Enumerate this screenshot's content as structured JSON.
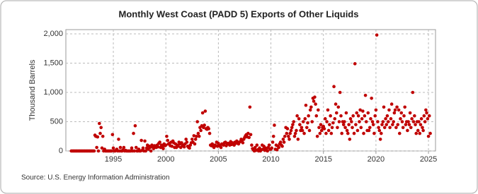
{
  "chart_data": {
    "type": "scatter",
    "title": "Monthly West Coast (PADD 5) Exports of Other Liquids",
    "y_label": "Thousand Barrels",
    "source": "Source: U.S. Energy Information Administration",
    "color": "#c00000",
    "grid": true,
    "xlim": [
      1990.48,
      2025.67
    ],
    "ylim": [
      0,
      2000
    ],
    "xticks": [
      1995,
      2000,
      2005,
      2010,
      2015,
      2020,
      2025
    ],
    "yticks": [
      0,
      500,
      {
        "value": 1000,
        "label": "1,000"
      },
      {
        "value": 1500,
        "label": "1,500"
      },
      {
        "value": 2000,
        "label": "2,000"
      }
    ],
    "x": [
      1991.0,
      1991.08,
      1991.17,
      1991.25,
      1991.33,
      1991.42,
      1991.5,
      1991.58,
      1991.67,
      1991.75,
      1991.83,
      1991.92,
      1992.0,
      1992.08,
      1992.17,
      1992.25,
      1992.33,
      1992.42,
      1992.5,
      1992.58,
      1992.67,
      1992.75,
      1992.83,
      1992.92,
      1993.0,
      1993.08,
      1993.17,
      1993.25,
      1993.33,
      1993.42,
      1993.5,
      1993.58,
      1993.67,
      1993.75,
      1993.83,
      1993.92,
      1994.0,
      1994.08,
      1994.17,
      1994.25,
      1994.33,
      1994.42,
      1994.5,
      1994.58,
      1994.67,
      1994.75,
      1994.83,
      1994.92,
      1995.0,
      1995.08,
      1995.17,
      1995.25,
      1995.33,
      1995.42,
      1995.5,
      1995.58,
      1995.67,
      1995.75,
      1995.83,
      1995.92,
      1996.0,
      1996.08,
      1996.17,
      1996.25,
      1996.33,
      1996.42,
      1996.5,
      1996.58,
      1996.67,
      1996.75,
      1996.83,
      1996.92,
      1997.0,
      1997.08,
      1997.17,
      1997.25,
      1997.33,
      1997.42,
      1997.5,
      1997.58,
      1997.67,
      1997.75,
      1997.83,
      1997.92,
      1998.0,
      1998.08,
      1998.17,
      1998.25,
      1998.33,
      1998.42,
      1998.5,
      1998.58,
      1998.67,
      1998.75,
      1998.83,
      1998.92,
      1999.0,
      1999.08,
      1999.17,
      1999.25,
      1999.33,
      1999.42,
      1999.5,
      1999.58,
      1999.67,
      1999.75,
      1999.83,
      1999.92,
      2000.0,
      2000.08,
      2000.17,
      2000.25,
      2000.33,
      2000.42,
      2000.5,
      2000.58,
      2000.67,
      2000.75,
      2000.83,
      2000.92,
      2001.0,
      2001.08,
      2001.17,
      2001.25,
      2001.33,
      2001.42,
      2001.5,
      2001.58,
      2001.67,
      2001.75,
      2001.83,
      2001.92,
      2002.0,
      2002.08,
      2002.17,
      2002.25,
      2002.33,
      2002.42,
      2002.5,
      2002.58,
      2002.67,
      2002.75,
      2002.83,
      2002.92,
      2003.0,
      2003.08,
      2003.17,
      2003.25,
      2003.33,
      2003.42,
      2003.5,
      2003.58,
      2003.67,
      2003.75,
      2003.83,
      2003.92,
      2004.0,
      2004.08,
      2004.17,
      2004.25,
      2004.33,
      2004.42,
      2004.5,
      2004.58,
      2004.67,
      2004.75,
      2004.83,
      2004.92,
      2005.0,
      2005.08,
      2005.17,
      2005.25,
      2005.33,
      2005.42,
      2005.5,
      2005.58,
      2005.67,
      2005.75,
      2005.83,
      2005.92,
      2006.0,
      2006.08,
      2006.17,
      2006.25,
      2006.33,
      2006.42,
      2006.5,
      2006.58,
      2006.67,
      2006.75,
      2006.83,
      2006.92,
      2007.0,
      2007.08,
      2007.17,
      2007.25,
      2007.33,
      2007.42,
      2007.5,
      2007.58,
      2007.67,
      2007.75,
      2007.83,
      2007.92,
      2008.0,
      2008.08,
      2008.17,
      2008.25,
      2008.33,
      2008.42,
      2008.5,
      2008.58,
      2008.67,
      2008.75,
      2008.83,
      2008.92,
      2009.0,
      2009.08,
      2009.17,
      2009.25,
      2009.33,
      2009.42,
      2009.5,
      2009.58,
      2009.67,
      2009.75,
      2009.83,
      2009.92,
      2010.0,
      2010.08,
      2010.17,
      2010.25,
      2010.33,
      2010.42,
      2010.5,
      2010.58,
      2010.67,
      2010.75,
      2010.83,
      2010.92,
      2011.0,
      2011.08,
      2011.17,
      2011.25,
      2011.33,
      2011.42,
      2011.5,
      2011.58,
      2011.67,
      2011.75,
      2011.83,
      2011.92,
      2012.0,
      2012.08,
      2012.17,
      2012.25,
      2012.33,
      2012.42,
      2012.5,
      2012.58,
      2012.67,
      2012.75,
      2012.83,
      2012.92,
      2013.0,
      2013.08,
      2013.17,
      2013.25,
      2013.33,
      2013.42,
      2013.5,
      2013.58,
      2013.67,
      2013.75,
      2013.83,
      2013.92,
      2014.0,
      2014.08,
      2014.17,
      2014.25,
      2014.33,
      2014.42,
      2014.5,
      2014.58,
      2014.67,
      2014.75,
      2014.83,
      2014.92,
      2015.0,
      2015.08,
      2015.17,
      2015.25,
      2015.33,
      2015.42,
      2015.5,
      2015.58,
      2015.67,
      2015.75,
      2015.83,
      2015.92,
      2016.0,
      2016.08,
      2016.17,
      2016.25,
      2016.33,
      2016.42,
      2016.5,
      2016.58,
      2016.67,
      2016.75,
      2016.83,
      2016.92,
      2017.0,
      2017.08,
      2017.17,
      2017.25,
      2017.33,
      2017.42,
      2017.5,
      2017.58,
      2017.67,
      2017.75,
      2017.83,
      2017.92,
      2018.0,
      2018.08,
      2018.17,
      2018.25,
      2018.33,
      2018.42,
      2018.5,
      2018.58,
      2018.67,
      2018.75,
      2018.83,
      2018.92,
      2019.0,
      2019.08,
      2019.17,
      2019.25,
      2019.33,
      2019.42,
      2019.5,
      2019.58,
      2019.67,
      2019.75,
      2019.83,
      2019.92,
      2020.0,
      2020.08,
      2020.17,
      2020.25,
      2020.33,
      2020.42,
      2020.5,
      2020.58,
      2020.67,
      2020.75,
      2020.83,
      2020.92,
      2021.0,
      2021.08,
      2021.17,
      2021.25,
      2021.33,
      2021.42,
      2021.5,
      2021.58,
      2021.67,
      2021.75,
      2021.83,
      2021.92,
      2022.0,
      2022.08,
      2022.17,
      2022.25,
      2022.33,
      2022.42,
      2022.5,
      2022.58,
      2022.67,
      2022.75,
      2022.83,
      2022.92,
      2023.0,
      2023.08,
      2023.17,
      2023.25,
      2023.33,
      2023.42,
      2023.5,
      2023.58,
      2023.67,
      2023.75,
      2023.83,
      2023.92,
      2024.0,
      2024.08,
      2024.17,
      2024.25,
      2024.33,
      2024.42,
      2024.5,
      2024.58,
      2024.67,
      2024.75,
      2024.83,
      2024.92,
      2025.0,
      2025.08,
      2025.17
    ],
    "values": [
      0,
      0,
      0,
      0,
      0,
      0,
      0,
      0,
      0,
      0,
      0,
      0,
      0,
      0,
      0,
      0,
      0,
      0,
      0,
      0,
      0,
      0,
      0,
      0,
      0,
      0,
      0,
      270,
      250,
      60,
      240,
      0,
      470,
      300,
      400,
      50,
      250,
      0,
      30,
      0,
      0,
      0,
      0,
      0,
      0,
      0,
      0,
      280,
      50,
      0,
      0,
      10,
      30,
      0,
      200,
      0,
      60,
      0,
      0,
      20,
      60,
      0,
      10,
      0,
      0,
      0,
      0,
      0,
      0,
      50,
      0,
      300,
      0,
      430,
      60,
      0,
      0,
      30,
      0,
      0,
      180,
      10,
      50,
      0,
      170,
      0,
      50,
      100,
      30,
      80,
      60,
      0,
      100,
      70,
      40,
      90,
      80,
      60,
      100,
      70,
      130,
      150,
      60,
      100,
      80,
      40,
      120,
      90,
      100,
      250,
      180,
      120,
      130,
      90,
      150,
      80,
      170,
      140,
      60,
      120,
      60,
      100,
      80,
      150,
      120,
      60,
      140,
      90,
      100,
      70,
      120,
      200,
      150,
      80,
      60,
      50,
      100,
      140,
      200,
      150,
      260,
      120,
      200,
      250,
      500,
      300,
      250,
      400,
      350,
      430,
      650,
      400,
      440,
      680,
      380,
      370,
      400,
      380,
      300,
      100,
      90,
      120,
      80,
      60,
      100,
      90,
      150,
      80,
      130,
      100,
      80,
      60,
      120,
      110,
      100,
      140,
      150,
      90,
      130,
      120,
      130,
      100,
      160,
      110,
      140,
      120,
      100,
      150,
      130,
      170,
      140,
      120,
      150,
      160,
      200,
      180,
      140,
      200,
      230,
      260,
      280,
      240,
      300,
      230,
      750,
      280,
      100,
      40,
      20,
      0,
      60,
      10,
      100,
      20,
      0,
      50,
      0,
      20,
      100,
      30,
      80,
      10,
      50,
      20,
      0,
      60,
      100,
      30,
      30,
      50,
      150,
      250,
      440,
      30,
      100,
      20,
      80,
      60,
      120,
      150,
      100,
      80,
      200,
      150,
      250,
      400,
      300,
      380,
      250,
      200,
      300,
      350,
      400,
      450,
      500,
      250,
      300,
      350,
      600,
      200,
      550,
      450,
      350,
      400,
      350,
      500,
      300,
      550,
      780,
      400,
      480,
      600,
      350,
      700,
      750,
      500,
      900,
      850,
      920,
      800,
      600,
      250,
      700,
      400,
      300,
      450,
      350,
      400,
      420,
      380,
      550,
      300,
      500,
      700,
      350,
      450,
      600,
      300,
      400,
      480,
      1100,
      550,
      800,
      650,
      400,
      750,
      500,
      1000,
      600,
      300,
      500,
      450,
      500,
      400,
      650,
      350,
      300,
      450,
      200,
      550,
      500,
      400,
      600,
      300,
      1490,
      450,
      650,
      350,
      600,
      500,
      700,
      400,
      550,
      680,
      300,
      600,
      950,
      500,
      350,
      650,
      350,
      400,
      550,
      900,
      500,
      450,
      300,
      600,
      700,
      1980,
      500,
      400,
      350,
      200,
      300,
      450,
      500,
      750,
      400,
      550,
      450,
      600,
      500,
      700,
      400,
      550,
      800,
      450,
      500,
      650,
      700,
      400,
      750,
      450,
      700,
      300,
      550,
      650,
      500,
      400,
      600,
      750,
      450,
      500,
      350,
      500,
      450,
      650,
      400,
      550,
      1000,
      500,
      600,
      450,
      300,
      500,
      350,
      500,
      300,
      450,
      550,
      400,
      350,
      600,
      500,
      700,
      650,
      550,
      250,
      600,
      300
    ]
  }
}
